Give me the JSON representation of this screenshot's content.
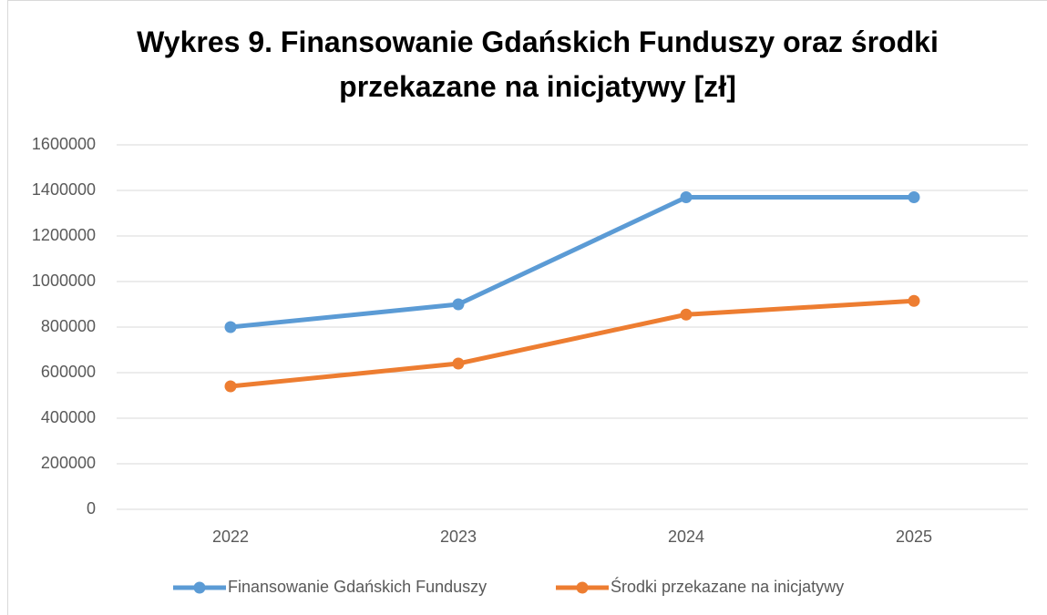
{
  "chart_data": {
    "type": "line",
    "title": "Wykres 9. Finansowanie Gdańskich Funduszy oraz środki przekazane na inicjatywy [zł]",
    "categories": [
      "2022",
      "2023",
      "2024",
      "2025"
    ],
    "series": [
      {
        "name": "Finansowanie Gdańskich Funduszy",
        "color": "#5b9bd5",
        "values": [
          800000,
          900000,
          1370000,
          1370000
        ]
      },
      {
        "name": "Środki przekazane na inicjatywy",
        "color": "#ed7d31",
        "values": [
          540000,
          640000,
          855000,
          915000
        ]
      }
    ],
    "ylim": [
      0,
      1600000
    ],
    "yticks": [
      0,
      200000,
      400000,
      600000,
      800000,
      1000000,
      1200000,
      1400000,
      1600000
    ],
    "grid": true,
    "legend": "bottom"
  }
}
